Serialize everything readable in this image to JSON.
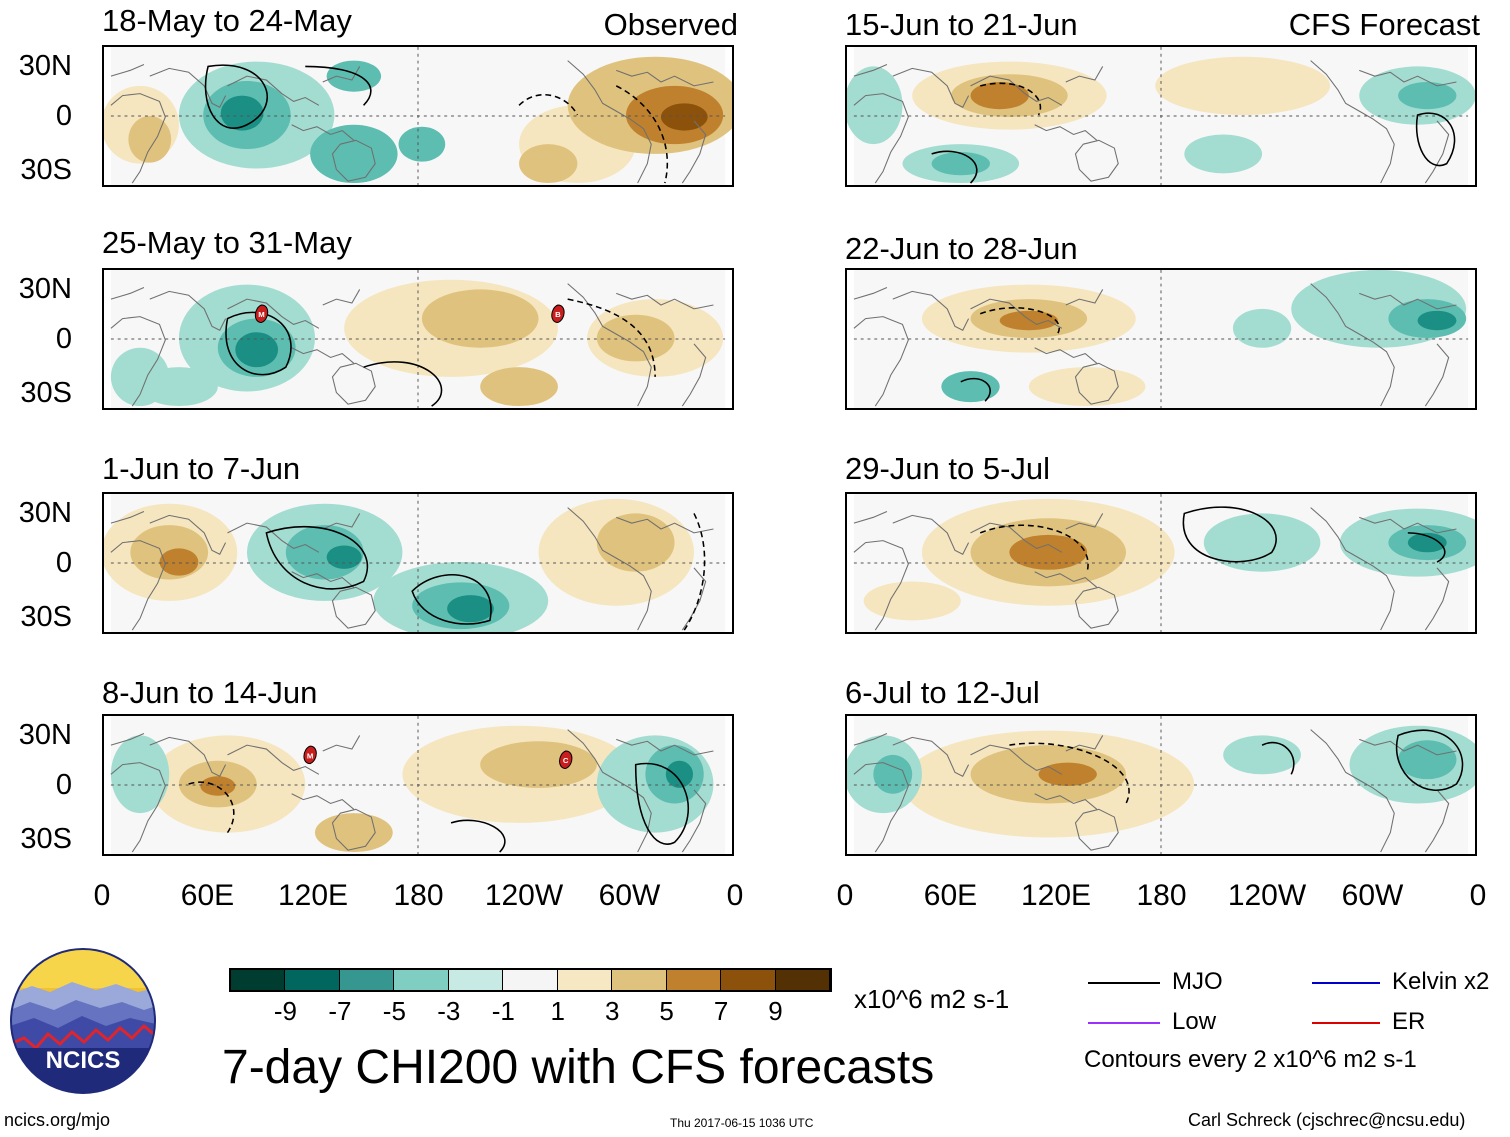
{
  "colors": {
    "teal_dark": "#00524a",
    "teal": "#1b8f84",
    "teal_mid": "#5cbdb0",
    "teal_light": "#a3dcd1",
    "teal_pale": "#d8f0ea",
    "neutral": "#f7f7f7",
    "brown_pale": "#f5e6bf",
    "brown_light": "#dfc27d",
    "brown_mid": "#bf812d",
    "brown": "#8c510a",
    "brown_dark": "#543005",
    "mjo": "#000000",
    "kelvin": "#0000cc",
    "low": "#9b30ff",
    "er": "#dd0000",
    "storm": "#c81e1e"
  },
  "observed_label": "Observed",
  "forecast_label": "CFS Forecast",
  "panels_observed": [
    {
      "title": "18-May to 24-May"
    },
    {
      "title": "25-May to 31-May",
      "storms": [
        "M",
        "B"
      ]
    },
    {
      "title": "1-Jun to 7-Jun"
    },
    {
      "title": "8-Jun to 14-Jun",
      "storms": [
        "M",
        "C"
      ]
    }
  ],
  "panels_forecast": [
    {
      "title": "15-Jun to 21-Jun"
    },
    {
      "title": "22-Jun to 28-Jun"
    },
    {
      "title": "29-Jun to 5-Jul"
    },
    {
      "title": "6-Jul to 12-Jul"
    }
  ],
  "lat_labels": [
    "30N",
    "0",
    "30S"
  ],
  "lon_labels": [
    "0",
    "60E",
    "120E",
    "180",
    "120W",
    "60W",
    "0"
  ],
  "colorbar": {
    "labels": [
      "-9",
      "-7",
      "-5",
      "-3",
      "-1",
      "1",
      "3",
      "5",
      "7",
      "9"
    ],
    "units": "x10^6 m2 s-1"
  },
  "legend": {
    "mjo": "MJO",
    "kelvin": "Kelvin x2",
    "low": "Low",
    "er": "ER",
    "contours_note": "Contours every 2 x10^6 m2 s-1"
  },
  "logo_text": "NCICS",
  "main_title": "7-day CHI200 with CFS forecasts",
  "footer": {
    "url": "ncics.org/mjo",
    "timestamp": "Thu 2017-06-15 1036 UTC",
    "author": "Carl Schreck (cjschrec@ncsu.edu)"
  }
}
